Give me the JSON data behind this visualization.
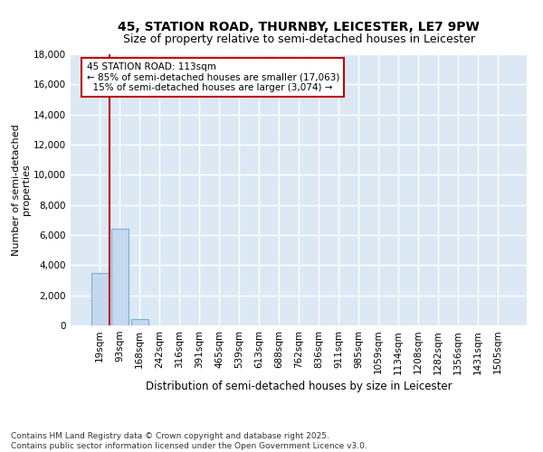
{
  "title": "45, STATION ROAD, THURNBY, LEICESTER, LE7 9PW",
  "subtitle": "Size of property relative to semi-detached houses in Leicester",
  "xlabel": "Distribution of semi-detached houses by size in Leicester",
  "ylabel": "Number of semi-detached\nproperties",
  "categories": [
    "19sqm",
    "93sqm",
    "168sqm",
    "242sqm",
    "316sqm",
    "391sqm",
    "465sqm",
    "539sqm",
    "613sqm",
    "688sqm",
    "762sqm",
    "836sqm",
    "911sqm",
    "985sqm",
    "1059sqm",
    "1134sqm",
    "1208sqm",
    "1282sqm",
    "1356sqm",
    "1431sqm",
    "1505sqm"
  ],
  "values": [
    3500,
    6400,
    400,
    0,
    0,
    0,
    0,
    0,
    0,
    0,
    0,
    0,
    0,
    0,
    0,
    0,
    0,
    0,
    0,
    0,
    0
  ],
  "bar_color": "#c5d8f0",
  "bar_edge_color": "#7bafd4",
  "background_color": "#dce9f5",
  "grid_color": "#ffffff",
  "vline_x": 0.5,
  "vline_color": "#c00000",
  "annotation_text": "45 STATION ROAD: 113sqm\n← 85% of semi-detached houses are smaller (17,063)\n  15% of semi-detached houses are larger (3,074) →",
  "annotation_box_color": "#c00000",
  "ylim": [
    0,
    18000
  ],
  "yticks": [
    0,
    2000,
    4000,
    6000,
    8000,
    10000,
    12000,
    14000,
    16000,
    18000
  ],
  "footer": "Contains HM Land Registry data © Crown copyright and database right 2025.\nContains public sector information licensed under the Open Government Licence v3.0.",
  "title_fontsize": 10,
  "subtitle_fontsize": 9,
  "tick_fontsize": 7.5,
  "ylabel_fontsize": 8,
  "xlabel_fontsize": 8.5,
  "footer_fontsize": 6.5
}
